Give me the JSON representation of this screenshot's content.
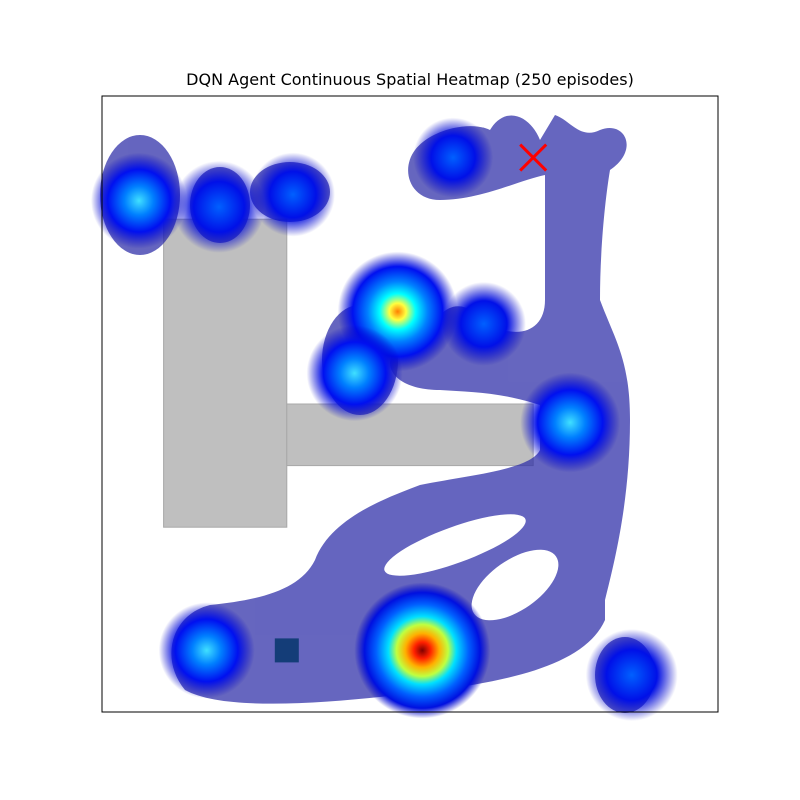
{
  "chart_data": {
    "type": "heatmap",
    "title": "DQN Agent Continuous Spatial Heatmap (250 episodes)",
    "xlabel": "",
    "ylabel": "",
    "xlim": [
      0,
      10
    ],
    "ylim": [
      0,
      10
    ],
    "axes_ticks": false,
    "grid": false,
    "colormap": [
      "#00007f",
      "#0000ff",
      "#0080ff",
      "#00ffff",
      "#80ff80",
      "#ffff00",
      "#ff8000",
      "#ff0000",
      "#7f0000"
    ],
    "obstacles": [
      {
        "name": "obstacle-block-left",
        "x": [
          1.0,
          3.0
        ],
        "y": [
          3.0,
          8.0
        ]
      },
      {
        "name": "obstacle-bar-middle",
        "x": [
          3.0,
          7.0
        ],
        "y": [
          4.0,
          5.0
        ]
      }
    ],
    "obstacle_color": "#bfbfbf",
    "start_marker": {
      "x": 3.0,
      "y": 1.0,
      "color": "#003366"
    },
    "goal_marker": {
      "x": 7.0,
      "y": 9.0,
      "color": "#ff0000",
      "symbol": "X"
    },
    "hotspots": [
      {
        "x": 5.2,
        "y": 1.0,
        "intensity": 1.0
      },
      {
        "x": 4.8,
        "y": 6.5,
        "intensity": 0.8
      },
      {
        "x": 7.6,
        "y": 4.7,
        "intensity": 0.55
      },
      {
        "x": 0.6,
        "y": 8.3,
        "intensity": 0.5
      },
      {
        "x": 1.7,
        "y": 1.0,
        "intensity": 0.5
      },
      {
        "x": 4.1,
        "y": 5.5,
        "intensity": 0.5
      },
      {
        "x": 8.6,
        "y": 0.6,
        "intensity": 0.45
      },
      {
        "x": 1.9,
        "y": 8.2,
        "intensity": 0.45
      },
      {
        "x": 3.1,
        "y": 8.4,
        "intensity": 0.35
      },
      {
        "x": 6.2,
        "y": 6.3,
        "intensity": 0.35
      },
      {
        "x": 5.7,
        "y": 9.0,
        "intensity": 0.3
      }
    ]
  }
}
